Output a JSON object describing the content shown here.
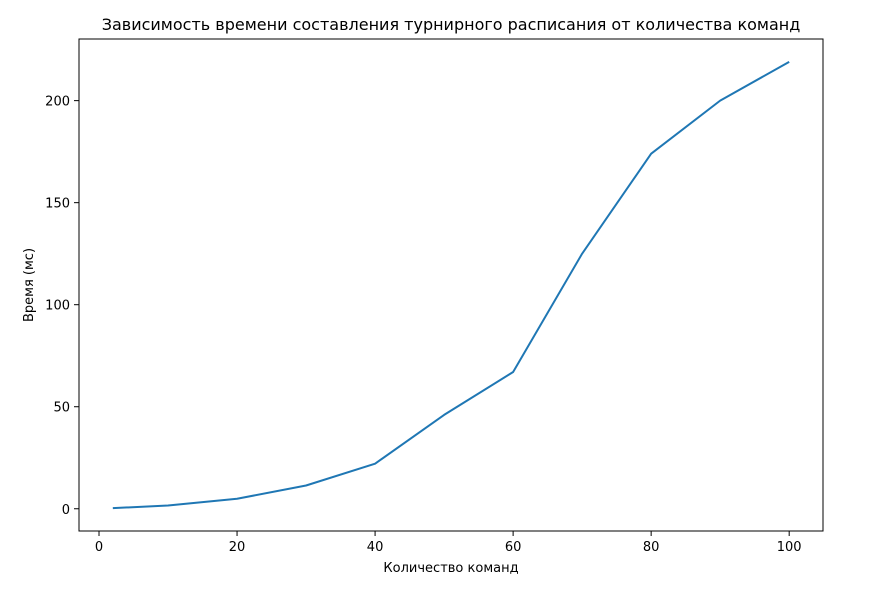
{
  "chart_data": {
    "type": "line",
    "title": "Зависимость времени составления турнирного расписания от количества команд",
    "xlabel": "Количество команд",
    "ylabel": "Время (мс)",
    "x": [
      2,
      10,
      20,
      30,
      40,
      50,
      60,
      70,
      80,
      90,
      100
    ],
    "series": [
      {
        "values": [
          0.3,
          1.6,
          4.9,
          11.4,
          22.1,
          46.0,
          67.0,
          125.0,
          174.0,
          200.0,
          219.0
        ],
        "color": "#1f77b4"
      }
    ],
    "xlim": [
      -2.9,
      104.9
    ],
    "ylim": [
      -10.9,
      230.2
    ],
    "xticks": [
      0,
      20,
      40,
      60,
      80,
      100
    ],
    "yticks": [
      0,
      50,
      100,
      150,
      200
    ],
    "grid": false,
    "legend": "none"
  }
}
